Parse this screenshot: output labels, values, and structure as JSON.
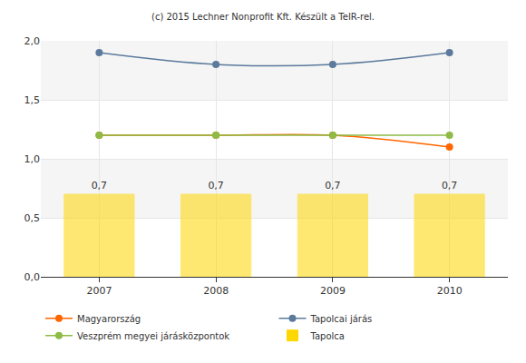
{
  "chart_data": {
    "type": "bar",
    "title": "(c) 2015 Lechner Nonprofit Kft. Készült a TeIR-rel.",
    "categories": [
      "2007",
      "2008",
      "2009",
      "2010"
    ],
    "series": [
      {
        "name": "Magyarország",
        "type": "line",
        "color": "#ff6600",
        "marker": "circle",
        "values": [
          1.2,
          1.2,
          1.2,
          1.1
        ]
      },
      {
        "name": "Tapolcai járás",
        "type": "line",
        "color": "#5b7a9c",
        "marker": "circle",
        "values": [
          1.9,
          1.8,
          1.8,
          1.9
        ]
      },
      {
        "name": "Veszprém megyei járásközpontok",
        "type": "line",
        "color": "#8dbb45",
        "marker": "circle",
        "values": [
          1.2,
          1.2,
          1.2,
          1.2
        ]
      },
      {
        "name": "Tapolca",
        "type": "bar",
        "color": "#ffd700",
        "values": [
          0.7,
          0.7,
          0.7,
          0.7
        ],
        "value_labels": [
          "0,7",
          "0,7",
          "0,7",
          "0,7"
        ]
      }
    ],
    "ylim": [
      0,
      2
    ],
    "yticks": [
      {
        "value": 0,
        "label": "0,0"
      },
      {
        "value": 0.5,
        "label": "0,5"
      },
      {
        "value": 1,
        "label": "1,0"
      },
      {
        "value": 1.5,
        "label": "1,5"
      },
      {
        "value": 2,
        "label": "2,0"
      }
    ],
    "grid": true,
    "data_labels": true,
    "legend": "bottom"
  }
}
